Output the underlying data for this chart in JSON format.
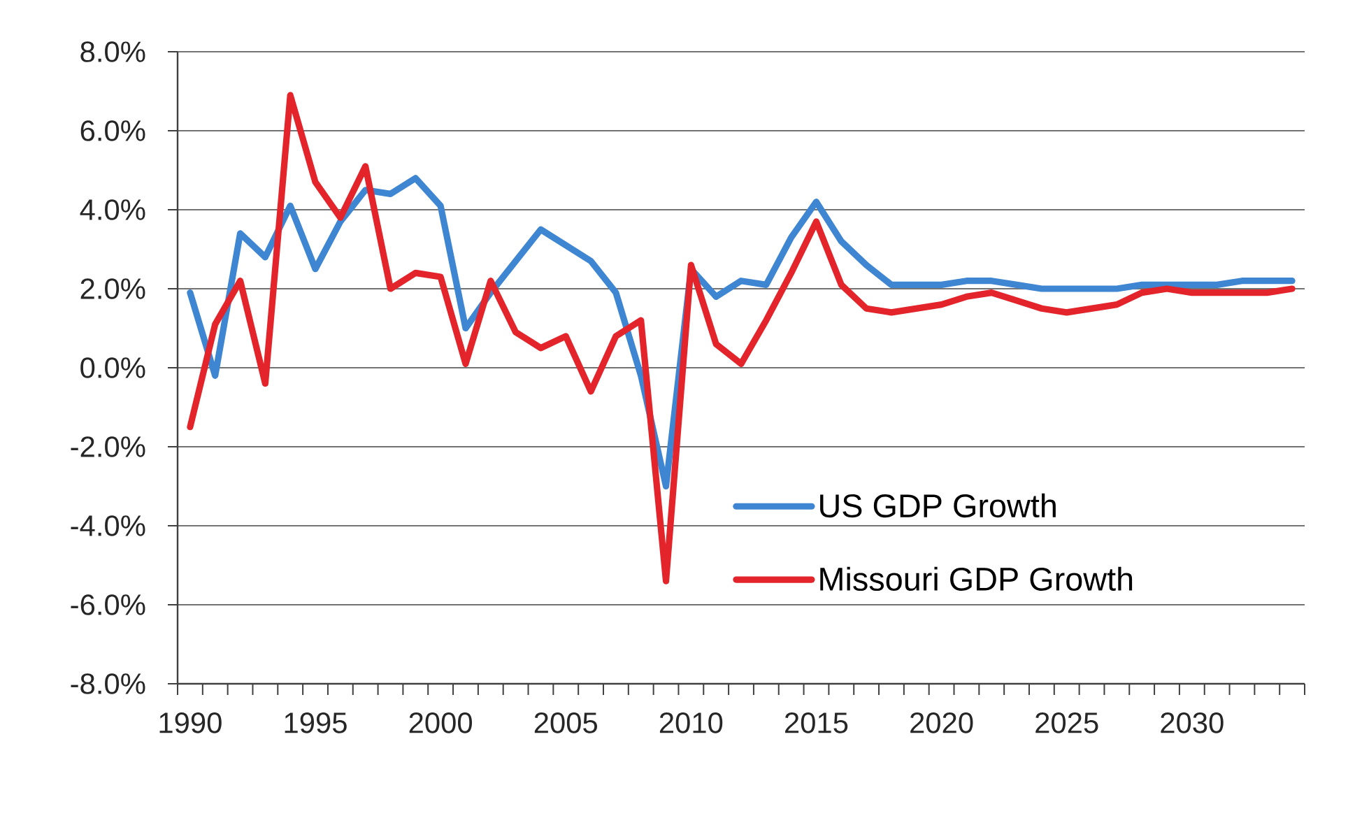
{
  "chart_data": {
    "type": "line",
    "categories": [
      "1990",
      null,
      null,
      null,
      null,
      "1995",
      null,
      null,
      null,
      null,
      "2000",
      null,
      null,
      null,
      null,
      "2005",
      null,
      null,
      null,
      null,
      "2010",
      null,
      null,
      null,
      null,
      "2015",
      null,
      null,
      null,
      null,
      "2020",
      null,
      null,
      null,
      null,
      "2025",
      null,
      null,
      null,
      null,
      "2030",
      null,
      null,
      null,
      null
    ],
    "series": [
      {
        "name": "US GDP Growth",
        "color": "#3f86d2",
        "values": [
          1.9,
          -0.2,
          3.4,
          2.8,
          4.1,
          2.5,
          3.7,
          4.5,
          4.4,
          4.8,
          4.1,
          1.0,
          1.9,
          2.7,
          3.5,
          3.1,
          2.7,
          1.9,
          -0.2,
          -3.0,
          2.5,
          1.8,
          2.2,
          2.1,
          3.3,
          4.2,
          3.2,
          2.6,
          2.1,
          2.1,
          2.1,
          2.2,
          2.2,
          2.1,
          2.0,
          2.0,
          2.0,
          2.0,
          2.1,
          2.1,
          2.1,
          2.1,
          2.2,
          2.2,
          2.2
        ]
      },
      {
        "name": "Missouri GDP Growth",
        "color": "#e3242b",
        "values": [
          -1.5,
          1.1,
          2.2,
          -0.4,
          6.9,
          4.7,
          3.8,
          5.1,
          2.0,
          2.4,
          2.3,
          0.1,
          2.2,
          0.9,
          0.5,
          0.8,
          -0.6,
          0.8,
          1.2,
          -5.4,
          2.6,
          0.6,
          0.1,
          1.2,
          2.4,
          3.7,
          2.1,
          1.5,
          1.4,
          1.5,
          1.6,
          1.8,
          1.9,
          1.7,
          1.5,
          1.4,
          1.5,
          1.6,
          1.9,
          2.0,
          1.9,
          1.9,
          1.9,
          1.9,
          2.0
        ]
      }
    ],
    "ylim": [
      -8,
      8
    ],
    "yticks": [
      {
        "value": -8,
        "label": "-8.0%"
      },
      {
        "value": -6,
        "label": "-6.0%"
      },
      {
        "value": -4,
        "label": "-4.0%"
      },
      {
        "value": -2,
        "label": "-2.0%"
      },
      {
        "value": 0,
        "label": "0.0%"
      },
      {
        "value": 2,
        "label": "2.0%"
      },
      {
        "value": 4,
        "label": "4.0%"
      },
      {
        "value": 6,
        "label": "6.0%"
      },
      {
        "value": 8,
        "label": "8.0%"
      }
    ],
    "grid": "y",
    "legend": "bottom right"
  }
}
